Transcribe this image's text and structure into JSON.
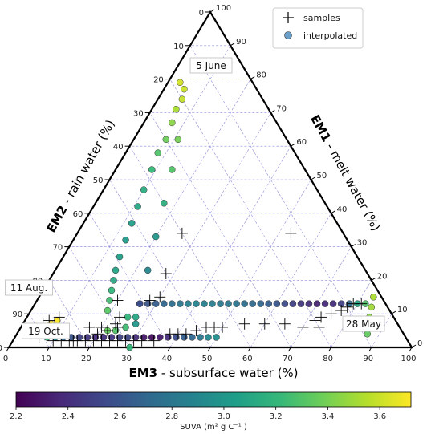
{
  "chart_data": {
    "type": "ternary-scatter",
    "axes": {
      "bottom": {
        "label_bold": "EM3",
        "label_rest": " - subsurface water (%)",
        "ticks": [
          "0",
          "10",
          "20",
          "30",
          "40",
          "50",
          "60",
          "70",
          "80",
          "90",
          "100"
        ]
      },
      "left": {
        "label_bold": "EM2",
        "label_rest": " - rain water (%)",
        "ticks": [
          "0",
          "10",
          "20",
          "30",
          "40",
          "50",
          "60",
          "70",
          "80",
          "90",
          "100"
        ]
      },
      "right": {
        "label_bold": "EM1",
        "label_rest": " - melt water (%)",
        "ticks": [
          "0",
          "10",
          "20",
          "30",
          "40",
          "50",
          "60",
          "70",
          "80",
          "90",
          "100"
        ]
      }
    },
    "grid": true,
    "legend": {
      "position": "top-right",
      "entries": [
        {
          "label": "samples",
          "marker": "plus"
        },
        {
          "label": "interpolated",
          "marker": "circle"
        }
      ]
    },
    "annotations": [
      "5 June",
      "11 Aug.",
      "19 Oct.",
      "28 May"
    ],
    "colorbar": {
      "label": "SUVA (m² g C⁻¹ )",
      "range": [
        2.2,
        3.72
      ],
      "ticks": [
        "2.2",
        "2.4",
        "2.6",
        "2.8",
        "3.0",
        "3.2",
        "3.4",
        "3.6"
      ],
      "colormap": [
        "#440154",
        "#482878",
        "#3e4989",
        "#31688e",
        "#26828e",
        "#1f9e89",
        "#35b779",
        "#6ece58",
        "#b5de2b",
        "#fde725"
      ]
    },
    "series": [
      {
        "name": "samples",
        "marker": "plus",
        "points": [
          [
            17,
            77,
            6
          ],
          [
            20,
            74,
            6
          ],
          [
            23,
            70,
            7
          ],
          [
            28,
            58,
            14
          ],
          [
            30,
            55,
            15
          ],
          [
            72,
            20,
            8
          ],
          [
            73,
            18,
            9
          ],
          [
            75,
            15,
            10
          ],
          [
            77,
            12,
            11
          ],
          [
            79,
            8,
            13
          ],
          [
            81,
            6,
            13
          ],
          [
            78,
            10,
            12
          ],
          [
            8,
            83,
            9
          ],
          [
            6,
            86,
            8
          ],
          [
            5,
            88,
            7
          ],
          [
            6,
            91,
            3
          ],
          [
            10,
            88,
            2
          ],
          [
            12,
            86,
            2
          ],
          [
            14,
            84,
            2
          ],
          [
            16,
            82,
            2
          ],
          [
            18,
            80,
            2
          ],
          [
            20,
            78,
            2
          ],
          [
            22,
            76,
            2
          ],
          [
            24,
            74,
            2
          ],
          [
            26,
            72,
            2
          ],
          [
            28,
            70,
            2
          ],
          [
            30,
            68,
            2
          ],
          [
            32,
            66,
            2
          ],
          [
            38,
            58,
            4
          ],
          [
            40,
            56,
            4
          ],
          [
            42,
            54,
            4
          ],
          [
            44,
            51,
            5
          ],
          [
            46,
            48,
            6
          ],
          [
            48,
            46,
            6
          ],
          [
            50,
            44,
            6
          ],
          [
            55,
            38,
            7
          ],
          [
            60,
            33,
            7
          ],
          [
            65,
            28,
            7
          ],
          [
            70,
            24,
            6
          ],
          [
            74,
            20,
            6
          ],
          [
            20,
            76,
            4
          ],
          [
            22,
            73,
            5
          ],
          [
            24,
            70,
            6
          ],
          [
            20,
            66,
            14
          ],
          [
            23,
            68,
            9
          ],
          [
            53,
            13,
            34
          ],
          [
            26,
            40,
            34
          ],
          [
            28,
            50,
            22
          ],
          [
            35,
            63,
            2
          ],
          [
            15,
            83,
            2
          ]
        ]
      },
      {
        "name": "interpolated",
        "marker": "circle",
        "points": [
          [
            3,
            18,
            79,
            3.62
          ],
          [
            5,
            18,
            77,
            3.6
          ],
          [
            6,
            20,
            74,
            3.58
          ],
          [
            6,
            23,
            71,
            3.52
          ],
          [
            7,
            26,
            67,
            3.45
          ],
          [
            8,
            30,
            62,
            3.38
          ],
          [
            8,
            34,
            58,
            3.3
          ],
          [
            9,
            38,
            53,
            3.22
          ],
          [
            10,
            43,
            47,
            3.15
          ],
          [
            11,
            47,
            42,
            3.1
          ],
          [
            12,
            51,
            37,
            3.05
          ],
          [
            13,
            55,
            32,
            3.02
          ],
          [
            14,
            59,
            27,
            3.05
          ],
          [
            15,
            62,
            23,
            3.08
          ],
          [
            16,
            64,
            20,
            3.12
          ],
          [
            17,
            66,
            17,
            3.2
          ],
          [
            18,
            68,
            14,
            3.25
          ],
          [
            19,
            70,
            11,
            3.32
          ],
          [
            11,
            27,
            62,
            3.4
          ],
          [
            14,
            33,
            53,
            3.3
          ],
          [
            17,
            40,
            43,
            3.15
          ],
          [
            20,
            47,
            33,
            3.0
          ],
          [
            23,
            54,
            23,
            2.9
          ],
          [
            26,
            61,
            13,
            2.85
          ],
          [
            28,
            65,
            7,
            3.0
          ],
          [
            30,
            70,
            0,
            3.2
          ],
          [
            83,
            2,
            15,
            3.52
          ],
          [
            84,
            4,
            12,
            3.5
          ],
          [
            85,
            6,
            9,
            3.45
          ],
          [
            86,
            8,
            6,
            3.4
          ],
          [
            87,
            9,
            4,
            3.35
          ],
          [
            82,
            5,
            13,
            3.3
          ],
          [
            80,
            7,
            13,
            3.1
          ],
          [
            78,
            9,
            13,
            2.7
          ],
          [
            76,
            11,
            13,
            2.5
          ],
          [
            74,
            13,
            13,
            2.4
          ],
          [
            72,
            15,
            13,
            2.38
          ],
          [
            70,
            17,
            13,
            2.36
          ],
          [
            68,
            19,
            13,
            2.4
          ],
          [
            66,
            21,
            13,
            2.45
          ],
          [
            64,
            23,
            13,
            2.5
          ],
          [
            62,
            25,
            13,
            2.55
          ],
          [
            60,
            27,
            13,
            2.6
          ],
          [
            58,
            29,
            13,
            2.65
          ],
          [
            56,
            31,
            13,
            2.7
          ],
          [
            54,
            33,
            13,
            2.72
          ],
          [
            52,
            35,
            13,
            2.75
          ],
          [
            50,
            37,
            13,
            2.78
          ],
          [
            48,
            39,
            13,
            2.8
          ],
          [
            46,
            41,
            13,
            2.82
          ],
          [
            44,
            43,
            13,
            2.84
          ],
          [
            42,
            45,
            13,
            2.86
          ],
          [
            40,
            47,
            13,
            2.88
          ],
          [
            38,
            49,
            13,
            2.85
          ],
          [
            36,
            51,
            13,
            2.8
          ],
          [
            34,
            53,
            13,
            2.75
          ],
          [
            32,
            55,
            13,
            2.7
          ],
          [
            30,
            57,
            13,
            2.65
          ],
          [
            28,
            59,
            13,
            2.6
          ],
          [
            26,
            61,
            13,
            2.55
          ],
          [
            8,
            84,
            8,
            3.72
          ],
          [
            7,
            86,
            7,
            3.7
          ],
          [
            6,
            88,
            6,
            3.68
          ],
          [
            6,
            90,
            4,
            3.55
          ],
          [
            8,
            89,
            3,
            3.2
          ],
          [
            10,
            87,
            3,
            2.9
          ],
          [
            12,
            85,
            3,
            2.7
          ],
          [
            14,
            83,
            3,
            2.6
          ],
          [
            16,
            81,
            3,
            2.5
          ],
          [
            18,
            79,
            3,
            2.45
          ],
          [
            20,
            77,
            3,
            2.4
          ],
          [
            22,
            75,
            3,
            2.42
          ],
          [
            24,
            73,
            3,
            2.45
          ],
          [
            26,
            71,
            3,
            2.5
          ],
          [
            28,
            69,
            3,
            2.52
          ],
          [
            30,
            67,
            3,
            2.4
          ],
          [
            32,
            65,
            3,
            2.3
          ],
          [
            34,
            63,
            3,
            2.25
          ],
          [
            36,
            61,
            3,
            2.3
          ],
          [
            38,
            59,
            3,
            2.4
          ],
          [
            40,
            57,
            3,
            2.55
          ],
          [
            42,
            55,
            3,
            2.65
          ],
          [
            44,
            53,
            3,
            2.7
          ],
          [
            46,
            51,
            3,
            2.8
          ],
          [
            48,
            49,
            3,
            2.9
          ],
          [
            50,
            47,
            3,
            2.95
          ],
          [
            22,
            73,
            5,
            3.35
          ],
          [
            24,
            71,
            5,
            3.3
          ],
          [
            26,
            68,
            6,
            3.25
          ],
          [
            25,
            66,
            9,
            3.2
          ],
          [
            27,
            64,
            9,
            3.1
          ]
        ]
      }
    ]
  }
}
